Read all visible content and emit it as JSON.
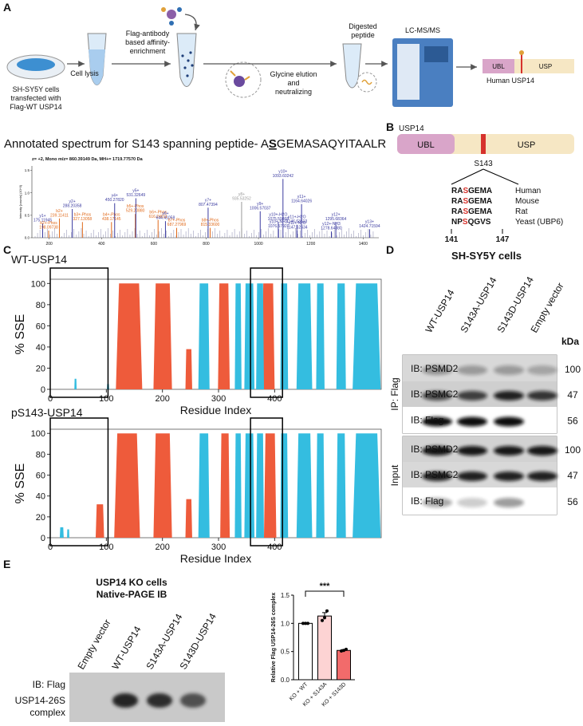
{
  "figure": {
    "panel_a": {
      "label": "A",
      "cells_caption": [
        "SH-SY5Y cells",
        "transfected with",
        "Flag-WT USP14"
      ],
      "lysis": "Cell lysis",
      "enrichment": [
        "Flag-antibody",
        "based affinity-",
        "enrichment"
      ],
      "elution": [
        "Glycine elution",
        "and",
        "neutralizing"
      ],
      "digest": [
        "Digested",
        "peptide"
      ],
      "instrument": "LC-MS/MS",
      "domains": [
        "UBL",
        "USP"
      ],
      "protein_caption": "Human USP14"
    },
    "panel_b": {
      "label": "B",
      "protein": "USP14",
      "domains": [
        "UBL",
        "USP"
      ],
      "site": "S143",
      "alignment": [
        {
          "pre": "RA",
          "site": "S",
          "post": "GEMA",
          "species": "Human"
        },
        {
          "pre": "RA",
          "site": "S",
          "post": "GEMA",
          "species": "Mouse"
        },
        {
          "pre": "RA",
          "site": "S",
          "post": "GEMA",
          "species": "Rat"
        },
        {
          "pre": "NP",
          "site": "S",
          "post": "QGVS",
          "species": "Yeast (UBP6)"
        }
      ],
      "start": "141",
      "end": "147"
    },
    "panel_c": {
      "label": "C"
    },
    "panel_d": {
      "label": "D",
      "title": "SH-SY5Y cells",
      "lanes": [
        "WT-USP14",
        "S143A-USP14",
        "S143D-USP14",
        "Empty vector"
      ],
      "kda_header": "kDa",
      "groups": [
        {
          "name": "IP: Flag",
          "rows": [
            {
              "ib": "IB: PSMD2",
              "kda": "100"
            },
            {
              "ib": "IB: PSMC2",
              "kda": "47"
            },
            {
              "ib": "IB: Flag",
              "kda": "56"
            }
          ]
        },
        {
          "name": "Input",
          "rows": [
            {
              "ib": "IB: PSMD2",
              "kda": "100"
            },
            {
              "ib": "IB: PSMC2",
              "kda": "47"
            },
            {
              "ib": "IB: Flag",
              "kda": "56"
            }
          ]
        }
      ]
    },
    "panel_e": {
      "label": "E",
      "title": [
        "USP14 KO cells",
        "Native-PAGE IB"
      ],
      "lanes": [
        "Empty vector",
        "WT-USP14",
        "S143A-USP14",
        "S143D-USP14"
      ],
      "ib": "IB: Flag",
      "band_label": [
        "USP14-26S",
        "complex"
      ]
    }
  },
  "chart_data": [
    {
      "type": "spectrum",
      "title": [
        "Annotated spectrum for S143 spanning peptide- A",
        "S",
        "GEMASAQYITAALR"
      ],
      "subtitle": "z= +2, Mono m/z= 860.39149 Da, MH+= 1719.77570 Da",
      "y_label": "Intensity [counts] (10^3)",
      "x": [
        175.11945,
        198.09738,
        239.11411,
        288.20358,
        327.13058,
        438.17145,
        450.2782,
        529.2088,
        531.32649,
        616.24011,
        644.41058,
        687.27969,
        807.47394,
        815.336,
        935.53252,
        1006.57037,
        1075.59868,
        1076.57921,
        1093.60242,
        1146.63513,
        1147.62634,
        1164.64026,
        1278.6488,
        1295.68364,
        1424.71594
      ],
      "values": [
        0.32,
        0.16,
        0.43,
        0.64,
        0.35,
        0.35,
        0.77,
        0.53,
        0.88,
        0.4,
        0.37,
        0.22,
        0.67,
        0.22,
        0.8,
        0.59,
        0.35,
        0.19,
        1.31,
        0.29,
        0.16,
        0.75,
        0.14,
        0.35,
        0.19
      ],
      "ions": [
        "y1+",
        "b2+-Phos",
        "b2+",
        "y2+",
        "b3+-Phos",
        "b4+-Phos",
        "y4+",
        "b5+-Phos",
        "y5+",
        "b6+-Phos",
        "y6+",
        "b7+-Phos",
        "y7+",
        "b8+-Phos",
        "y8+",
        "y9+",
        "y10+-H2O",
        "y10+-NH3",
        "y10+",
        "y11+-H2O",
        "y11+-NH3",
        "y11+",
        "y12+-NH3",
        "y12+",
        "y13+"
      ],
      "mz_labels": [
        "175.11945",
        "198.09738",
        "239.11411",
        "288.20358",
        "327.13058",
        "438.17145",
        "450.27820",
        "529.20880",
        "531.32649",
        "616.24011",
        "644.41058",
        "687.27969",
        "807.47394",
        "815.33600",
        "935.53252",
        "1006.57037",
        "1075.59868",
        "1076.57921",
        "1093.60242",
        "1146.63513",
        "1147.62634",
        "1164.64026",
        "1278.64880",
        "1295.68364",
        "1424.71594"
      ],
      "colors": [
        "#3b3ba0",
        "#e06a1b",
        "#e06a1b",
        "#3b3ba0",
        "#e06a1b",
        "#e06a1b",
        "#3b3ba0",
        "#e06a1b",
        "#3b3ba0",
        "#e06a1b",
        "#3b3ba0",
        "#e06a1b",
        "#3b3ba0",
        "#e06a1b",
        "#999999",
        "#3b3ba0",
        "#3b3ba0",
        "#3b3ba0",
        "#3b3ba0",
        "#3b3ba0",
        "#3b3ba0",
        "#3b3ba0",
        "#3b3ba0",
        "#3b3ba0",
        "#3b3ba0"
      ],
      "xlim": [
        134,
        1460
      ],
      "ylim": [
        0,
        1.6
      ],
      "xticks": [
        200,
        400,
        600,
        800,
        1000,
        1200,
        1400
      ],
      "yticks": [
        {
          "value": 0,
          "label": "0.0"
        },
        {
          "value": 0.5,
          "label": "0.5"
        },
        {
          "value": 1,
          "label": "1.0"
        },
        {
          "value": 1.5,
          "label": "1.5"
        }
      ]
    },
    {
      "type": "sse",
      "title": "WT-USP14",
      "y_label": "% SSE",
      "x_label": "Residue Index",
      "xlim": [
        0,
        590
      ],
      "ylim": [
        0,
        104
      ],
      "xticks": [
        0,
        100,
        200,
        300,
        400
      ],
      "yticks": [
        0,
        20,
        40,
        60,
        80,
        100
      ],
      "highlight_ranges": [
        [
          0,
          103
        ],
        [
          357,
          414
        ]
      ],
      "series": [
        {
          "color": "#ee5b3b",
          "regions": [
            [
              117,
              164,
              100
            ],
            [
              184,
              217,
              100
            ],
            [
              241,
              253,
              38
            ],
            [
              299,
              320,
              100
            ],
            [
              377,
              400,
              100
            ]
          ]
        },
        {
          "color": "#34bde0",
          "regions": [
            [
              43,
              47,
              10
            ],
            [
              101,
              105,
              5
            ],
            [
              264,
              284,
              100
            ],
            [
              329,
              341,
              100
            ],
            [
              346,
              364,
              100
            ],
            [
              367,
              381,
              100
            ],
            [
              410,
              424,
              100
            ],
            [
              439,
              467,
              100
            ],
            [
              474,
              489,
              100
            ],
            [
              510,
              527,
              100
            ],
            [
              539,
              589,
              100
            ]
          ]
        }
      ]
    },
    {
      "type": "sse",
      "title": "pS143-USP14",
      "y_label": "% SSE",
      "x_label": "Residue Index",
      "xlim": [
        0,
        590
      ],
      "ylim": [
        0,
        104
      ],
      "xticks": [
        0,
        100,
        200,
        300,
        400
      ],
      "yticks": [
        0,
        20,
        40,
        60,
        80,
        100
      ],
      "highlight_ranges": [
        [
          0,
          103
        ],
        [
          357,
          414
        ]
      ],
      "series": [
        {
          "color": "#ee5b3b",
          "regions": [
            [
              81,
              96,
              32
            ],
            [
              114,
              160,
              100
            ],
            [
              184,
              217,
              100
            ],
            [
              241,
              253,
              37
            ],
            [
              303,
              320,
              100
            ],
            [
              381,
              403,
              100
            ]
          ]
        },
        {
          "color": "#34bde0",
          "regions": [
            [
              17,
              24,
              10
            ],
            [
              30,
              34,
              8
            ],
            [
              264,
              284,
              100
            ],
            [
              329,
              341,
              100
            ],
            [
              346,
              364,
              100
            ],
            [
              367,
              381,
              100
            ],
            [
              410,
              424,
              100
            ],
            [
              439,
              467,
              100
            ],
            [
              474,
              489,
              100
            ],
            [
              510,
              527,
              100
            ],
            [
              539,
              589,
              100
            ]
          ]
        }
      ]
    },
    {
      "type": "bar",
      "y_label": "Relative Flag USP14-26S complex",
      "categories": [
        "KO + WT",
        "KO + S143A",
        "KO + S143D"
      ],
      "values": [
        1.0,
        1.13,
        0.52
      ],
      "errors": [
        0,
        0.06,
        0.015
      ],
      "points": [
        [
          1.0,
          1.0,
          1.0
        ],
        [
          1.05,
          1.1,
          1.22
        ],
        [
          0.51,
          0.52,
          0.54
        ]
      ],
      "colors": [
        "#ffffff",
        "#fdd3d3",
        "#f26b6b"
      ],
      "ylim": [
        0,
        1.5
      ],
      "yticks": [
        {
          "value": 0,
          "label": "0.0"
        },
        {
          "value": 0.5,
          "label": "0.5"
        },
        {
          "value": 1,
          "label": "1.0"
        },
        {
          "value": 1.5,
          "label": "1.5"
        }
      ],
      "significance": "***"
    }
  ]
}
